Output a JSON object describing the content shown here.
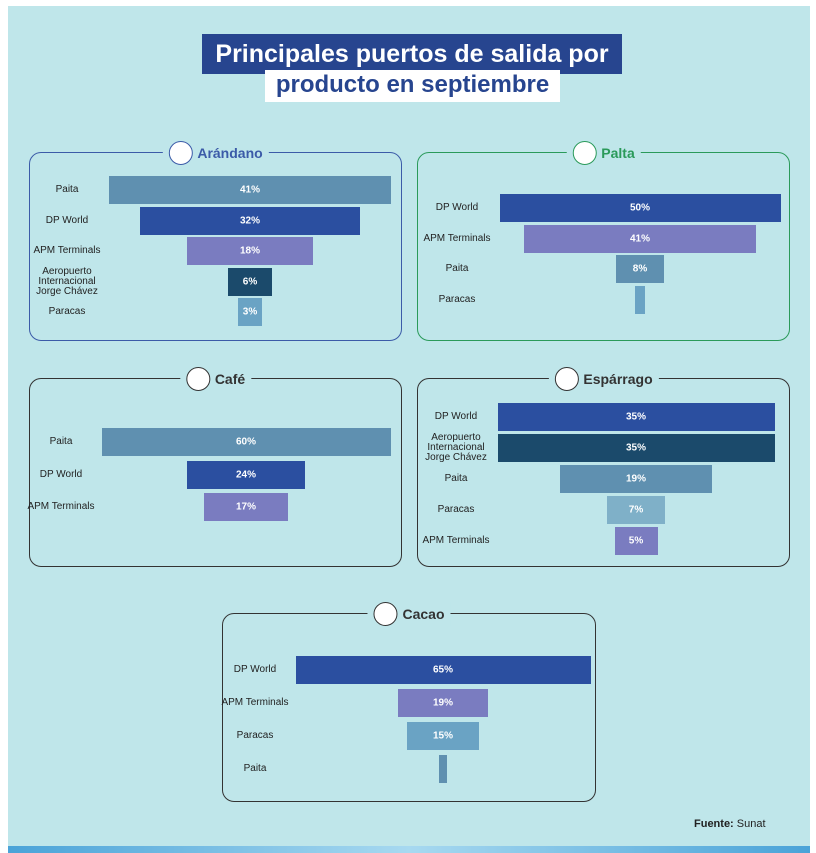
{
  "header": {
    "title": "Principales puertos de salida por",
    "subtitle": "producto en septiembre"
  },
  "chart_data": [
    {
      "type": "funnel",
      "title": "Arándano",
      "color": "#3b5ba8",
      "categories": [
        "Paita",
        "DP World",
        "APM Terminals",
        "Aeropuerto Internacional Jorge Chávez",
        "Paracas"
      ],
      "values": [
        41,
        32,
        18,
        6,
        3
      ],
      "value_labels": [
        "41%",
        "32%",
        "18%",
        "6%",
        "3%"
      ],
      "colors": [
        "#5f90b0",
        "#2b4fa0",
        "#7a7cc0",
        "#1b4a6b",
        "#6aa3c4"
      ]
    },
    {
      "type": "funnel",
      "title": "Palta",
      "color": "#2a9a5a",
      "categories": [
        "DP World",
        "APM Terminals",
        "Paita",
        "Paracas"
      ],
      "values": [
        50,
        41,
        8,
        1
      ],
      "value_labels": [
        "50%",
        "41%",
        "8%",
        null
      ],
      "colors": [
        "#2b4fa0",
        "#7a7cc0",
        "#5f90b0",
        "#6aa3c4"
      ]
    },
    {
      "type": "funnel",
      "title": "Café",
      "color": "#333333",
      "categories": [
        "Paita",
        "DP World",
        "APM Terminals"
      ],
      "values": [
        60,
        24,
        17
      ],
      "value_labels": [
        "60%",
        "24%",
        "17%"
      ],
      "colors": [
        "#5f90b0",
        "#2b4fa0",
        "#7a7cc0"
      ]
    },
    {
      "type": "funnel",
      "title": "Espárrago",
      "color": "#333333",
      "categories": [
        "DP World",
        "Aeropuerto Internacional Jorge Chávez",
        "Paita",
        "Paracas",
        "APM Terminals"
      ],
      "values": [
        35,
        35,
        19,
        7,
        5
      ],
      "value_labels": [
        "35%",
        "35%",
        "19%",
        "7%",
        "5%"
      ],
      "colors": [
        "#2b4fa0",
        "#1b4a6b",
        "#5f90b0",
        "#7fb0c8",
        "#7a7cc0"
      ]
    },
    {
      "type": "funnel",
      "title": "Cacao",
      "color": "#333333",
      "categories": [
        "DP World",
        "APM Terminals",
        "Paracas",
        "Paita"
      ],
      "values": [
        65,
        19,
        15,
        1
      ],
      "value_labels": [
        "65%",
        "19%",
        "15%",
        null
      ],
      "colors": [
        "#2b4fa0",
        "#7a7cc0",
        "#6aa3c4",
        "#5f90b0"
      ]
    }
  ],
  "source": {
    "label": "Fuente:",
    "text": "Sunat"
  }
}
